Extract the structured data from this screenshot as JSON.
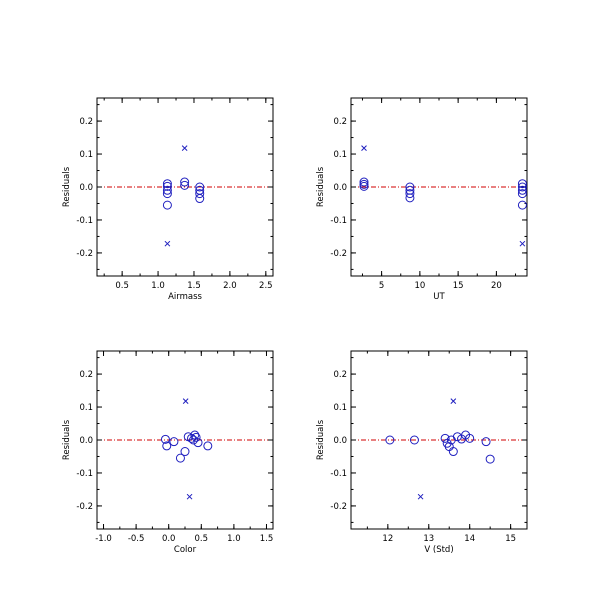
{
  "colors": {
    "axis": "#000000",
    "marker": "#1f1fbf",
    "zero_line": "#d00000"
  },
  "chart_data": [
    {
      "type": "scatter",
      "xlabel": "Airmass",
      "ylabel": "Residuals",
      "xlim": [
        0.15,
        2.6
      ],
      "ylim": [
        -0.27,
        0.27
      ],
      "xticks": [
        0.5,
        1.0,
        1.5,
        2.0,
        2.5
      ],
      "xtick_labels": [
        "0.5",
        "1.0",
        "1.5",
        "2.0",
        "2.5"
      ],
      "yticks": [
        0.2,
        0.1,
        0.0,
        -0.1,
        -0.2
      ],
      "ytick_labels": [
        "0.2",
        "0.1",
        "0.0",
        "-0.1",
        "-0.2"
      ],
      "zero_line": true,
      "series": [
        {
          "marker": "circle",
          "x": [
            1.13,
            1.13,
            1.13,
            1.13,
            1.13,
            1.37,
            1.37,
            1.58,
            1.58,
            1.58,
            1.58
          ],
          "y": [
            0.01,
            0.002,
            -0.01,
            -0.02,
            -0.055,
            0.015,
            0.005,
            0.0,
            -0.01,
            -0.02,
            -0.035
          ]
        },
        {
          "marker": "cross",
          "x": [
            1.37,
            1.13
          ],
          "y": [
            0.118,
            -0.172
          ]
        }
      ]
    },
    {
      "type": "scatter",
      "xlabel": "UT",
      "ylabel": "Residuals",
      "xlim": [
        1.0,
        24.0
      ],
      "ylim": [
        -0.27,
        0.27
      ],
      "xticks": [
        5,
        10,
        15,
        20
      ],
      "xtick_labels": [
        "5",
        "10",
        "15",
        "20"
      ],
      "yticks": [
        0.2,
        0.1,
        0.0,
        -0.1,
        -0.2
      ],
      "ytick_labels": [
        "0.2",
        "0.1",
        "0.0",
        "-0.1",
        "-0.2"
      ],
      "zero_line": true,
      "series": [
        {
          "marker": "circle",
          "x": [
            2.7,
            2.7,
            2.7,
            8.7,
            8.7,
            8.7,
            8.7,
            23.4,
            23.4,
            23.4,
            23.4,
            23.4
          ],
          "y": [
            0.015,
            0.008,
            0.002,
            0.0,
            -0.01,
            -0.02,
            -0.033,
            0.01,
            0.0,
            -0.01,
            -0.02,
            -0.055
          ]
        },
        {
          "marker": "cross",
          "x": [
            2.7,
            23.4
          ],
          "y": [
            0.118,
            -0.172
          ]
        }
      ]
    },
    {
      "type": "scatter",
      "xlabel": "Color",
      "ylabel": "Residuals",
      "xlim": [
        -1.1,
        1.6
      ],
      "ylim": [
        -0.27,
        0.27
      ],
      "xticks": [
        -1.0,
        -0.5,
        0.0,
        0.5,
        1.0,
        1.5
      ],
      "xtick_labels": [
        "-1.0",
        "-0.5",
        "0.0",
        "0.5",
        "1.0",
        "1.5"
      ],
      "yticks": [
        0.2,
        0.1,
        0.0,
        -0.1,
        -0.2
      ],
      "ytick_labels": [
        "0.2",
        "0.1",
        "0.0",
        "-0.1",
        "-0.2"
      ],
      "zero_line": true,
      "series": [
        {
          "marker": "circle",
          "x": [
            -0.05,
            -0.03,
            0.08,
            0.18,
            0.25,
            0.3,
            0.35,
            0.38,
            0.4,
            0.42,
            0.45,
            0.6
          ],
          "y": [
            0.002,
            -0.018,
            -0.005,
            -0.055,
            -0.035,
            0.01,
            0.005,
            0.0,
            0.015,
            0.008,
            -0.008,
            -0.018
          ]
        },
        {
          "marker": "cross",
          "x": [
            0.26,
            0.32
          ],
          "y": [
            0.118,
            -0.172
          ]
        }
      ]
    },
    {
      "type": "scatter",
      "xlabel": "V (Std)",
      "ylabel": "Residuals",
      "xlim": [
        11.1,
        15.4
      ],
      "ylim": [
        -0.27,
        0.27
      ],
      "xticks": [
        12,
        13,
        14,
        15
      ],
      "xtick_labels": [
        "12",
        "13",
        "14",
        "15"
      ],
      "yticks": [
        0.2,
        0.1,
        0.0,
        -0.1,
        -0.2
      ],
      "ytick_labels": [
        "0.2",
        "0.1",
        "0.0",
        "-0.1",
        "-0.2"
      ],
      "zero_line": true,
      "series": [
        {
          "marker": "circle",
          "x": [
            12.05,
            12.65,
            13.4,
            13.45,
            13.5,
            13.55,
            13.6,
            13.7,
            13.8,
            13.9,
            14.0,
            14.4,
            14.5
          ],
          "y": [
            0.0,
            0.0,
            0.005,
            -0.01,
            -0.02,
            0.0,
            -0.035,
            0.01,
            0.003,
            0.015,
            0.005,
            -0.005,
            -0.058
          ]
        },
        {
          "marker": "cross",
          "x": [
            13.6,
            12.8
          ],
          "y": [
            0.118,
            -0.172
          ]
        }
      ]
    }
  ]
}
